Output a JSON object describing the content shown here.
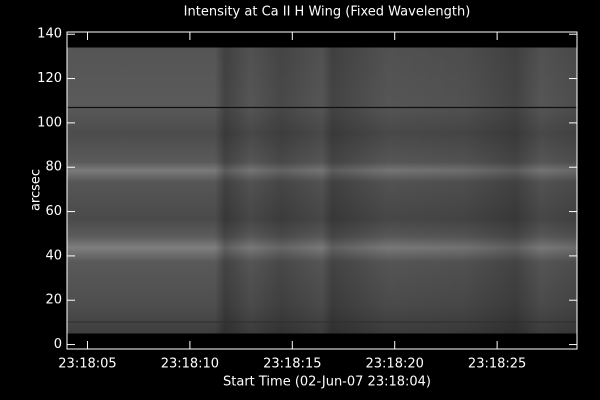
{
  "chart_data": {
    "type": "image",
    "title": "Intensity at Ca II H Wing (Fixed Wavelength)",
    "x_label": "Start Time (02-Jun-07 23:18:04)",
    "y_label": "arcsec",
    "xlim": [
      0,
      24.9
    ],
    "xticks": [
      {
        "value": 1,
        "label": "23:18:05"
      },
      {
        "value": 6,
        "label": "23:18:10"
      },
      {
        "value": 11,
        "label": "23:18:15"
      },
      {
        "value": 16,
        "label": "23:18:20"
      },
      {
        "value": 21,
        "label": "23:18:25"
      }
    ],
    "ylim": [
      -2,
      141
    ],
    "yticks": [
      0,
      20,
      40,
      60,
      80,
      100,
      120,
      140
    ]
  }
}
